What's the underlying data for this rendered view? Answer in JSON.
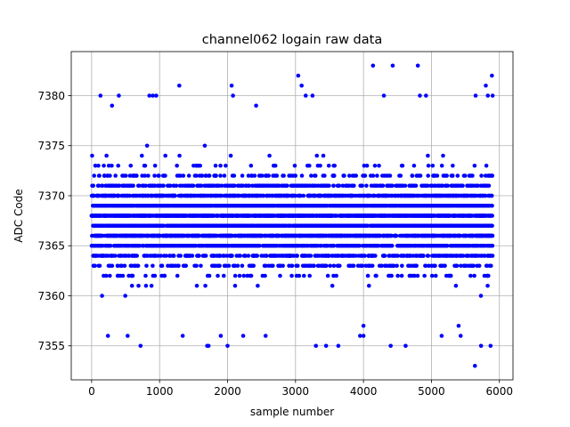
{
  "chart_data": {
    "type": "scatter",
    "title": "channel062 logain raw data",
    "xlabel": "sample number",
    "ylabel": "ADC Code",
    "xlim": [
      -300,
      6200
    ],
    "ylim": [
      7351.6,
      7384.4
    ],
    "xticks": [
      0,
      1000,
      2000,
      3000,
      4000,
      5000,
      6000
    ],
    "xtick_labels": [
      "0",
      "1000",
      "2000",
      "3000",
      "4000",
      "5000",
      "6000"
    ],
    "yticks": [
      7355,
      7360,
      7365,
      7370,
      7375,
      7380
    ],
    "ytick_labels": [
      "7355",
      "7360",
      "7365",
      "7370",
      "7375",
      "7380"
    ],
    "grid": true,
    "marker_color": "#0000ff",
    "n_samples": 5900,
    "core_min": 7361,
    "core_max": 7374,
    "outliers": [
      [
        130,
        7380
      ],
      [
        300,
        7379
      ],
      [
        400,
        7380
      ],
      [
        720,
        7355
      ],
      [
        850,
        7380
      ],
      [
        900,
        7380
      ],
      [
        950,
        7380
      ],
      [
        1290,
        7381
      ],
      [
        1700,
        7355
      ],
      [
        1720,
        7355
      ],
      [
        1900,
        7356
      ],
      [
        2000,
        7355
      ],
      [
        2060,
        7381
      ],
      [
        2080,
        7380
      ],
      [
        2420,
        7379
      ],
      [
        3040,
        7382
      ],
      [
        3090,
        7381
      ],
      [
        3150,
        7380
      ],
      [
        3250,
        7380
      ],
      [
        3300,
        7355
      ],
      [
        3450,
        7355
      ],
      [
        3950,
        7356
      ],
      [
        4000,
        7357
      ],
      [
        4140,
        7383
      ],
      [
        4300,
        7380
      ],
      [
        4400,
        7355
      ],
      [
        4430,
        7383
      ],
      [
        4620,
        7355
      ],
      [
        4800,
        7383
      ],
      [
        4830,
        7380
      ],
      [
        4920,
        7380
      ],
      [
        5150,
        7356
      ],
      [
        5400,
        7357
      ],
      [
        5650,
        7380
      ],
      [
        5640,
        7353
      ],
      [
        5730,
        7355
      ],
      [
        5800,
        7381
      ],
      [
        5830,
        7380
      ],
      [
        5870,
        7355
      ],
      [
        5890,
        7382
      ],
      [
        5900,
        7380
      ],
      [
        240,
        7356
      ],
      [
        1340,
        7356
      ],
      [
        2560,
        7356
      ],
      [
        4000,
        7356
      ],
      [
        5430,
        7356
      ],
      [
        530,
        7356
      ],
      [
        3630,
        7355
      ],
      [
        2230,
        7356
      ]
    ]
  }
}
